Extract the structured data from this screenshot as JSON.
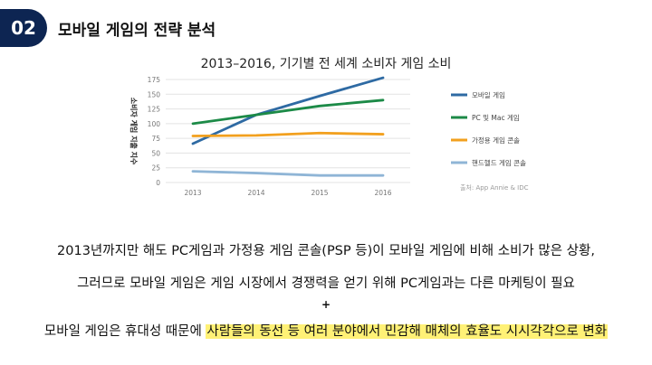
{
  "badge": "02",
  "slide_title": "모바일 게임의 전략 분석",
  "chart_heading": "2013–2016, 기기별 전 세계 소비자 게임 소비",
  "chart_data": {
    "type": "line",
    "x": [
      "2013",
      "2014",
      "2015",
      "2016"
    ],
    "ylabel": "소비자 게임 지출 지수",
    "ylim": [
      0,
      175
    ],
    "yticks": [
      0,
      25,
      50,
      75,
      100,
      125,
      150,
      175
    ],
    "series": [
      {
        "name": "모바일 게임",
        "color": "#2e6aa3",
        "values": [
          66,
          115,
          147,
          178
        ]
      },
      {
        "name": "PC 및 Mac 게임",
        "color": "#1c8a47",
        "values": [
          100,
          115,
          130,
          140
        ]
      },
      {
        "name": "가정용 게임 콘솔",
        "color": "#f2a01e",
        "values": [
          79,
          80,
          84,
          82
        ]
      },
      {
        "name": "핸드헬드 게임 콘솔",
        "color": "#8fb5d6",
        "values": [
          19,
          16,
          12,
          12
        ]
      }
    ],
    "source": "출처: App Annie & IDC",
    "grid": true,
    "legend": "right"
  },
  "captions": {
    "line1": "2013년까지만 해도 PC게임과 가정용 게임 콘솔(PSP 등)이 모바일 게임에 비해 소비가 많은 상황,",
    "line2": "그러므로 모바일 게임은 게임 시장에서 경쟁력을 얻기 위해 PC게임과는 다른 마케팅이 필요",
    "plus": "+",
    "line3_prefix": "모바일 게임은 휴대성 때문에 ",
    "line3_highlight": "사람들의 동선 등 여러 분야에서 민감해 매체의 효율도 시시각각으로 변화",
    "highlight_color": "#fff176"
  }
}
